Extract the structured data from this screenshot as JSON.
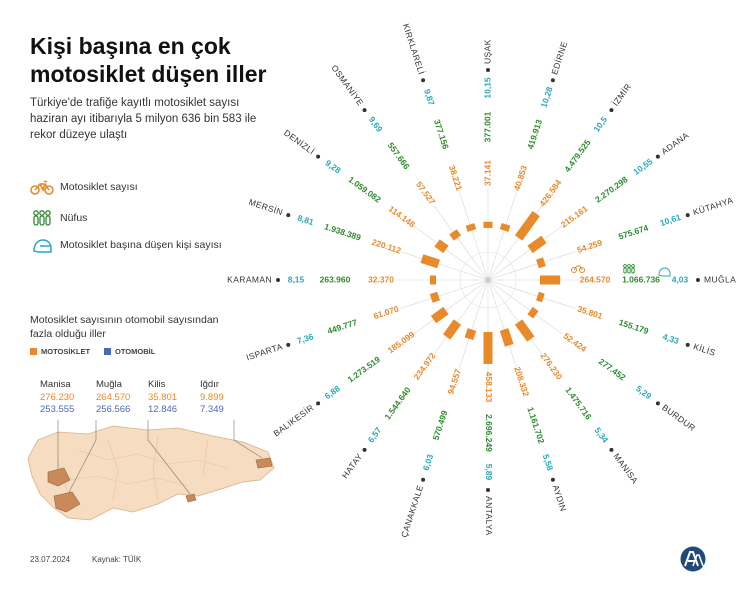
{
  "header": {
    "title": "Kişi başına en çok motosiklet düşen iller",
    "subtitle": "Türkiye'de trafiğe kayıtlı motosiklet sayısı haziran ayı itibarıyla 5 milyon 636 bin 583 ile rekor düzeye ulaştı"
  },
  "legend": {
    "motorcycles": "Motosiklet sayısı",
    "population": "Nüfus",
    "per_capita": "Motosiklet başına düşen kişi sayısı"
  },
  "note": {
    "text": "Motosiklet sayısının otomobil sayısından fazla olduğu iller",
    "moto_label": "MOTOSİKLET",
    "auto_label": "OTOMOBİL",
    "cities": [
      {
        "name": "Manisa",
        "moto": "276.230",
        "auto": "253.555"
      },
      {
        "name": "Muğla",
        "moto": "264.570",
        "auto": "256.566"
      },
      {
        "name": "Kilis",
        "moto": "35.801",
        "auto": "12.846"
      },
      {
        "name": "Iğdır",
        "moto": "9.899",
        "auto": "7.349"
      }
    ]
  },
  "colors": {
    "moto": "#e8892a",
    "population": "#2e8b2e",
    "per_capita": "#2aa8b8",
    "auto": "#4a6ab8",
    "map": "#f6dcc0",
    "map_highlight": "#c98a5a"
  },
  "icons": {
    "motorcycles": "motorcycle-icon",
    "population": "people-icon",
    "per_capita": "helmet-icon",
    "logo": "aa-logo-icon"
  },
  "footer": {
    "date": "23.07.2024",
    "source": "Kaynak: TÜİK"
  },
  "chart_data": {
    "type": "bar",
    "layout": "radial",
    "series_names": [
      "Motosiklet sayısı",
      "Nüfus",
      "Motosiklet başına düşen kişi sayısı"
    ],
    "cities": [
      {
        "name": "MUĞLA",
        "motorcycles": 264570,
        "motorcycles_label": "264.570",
        "population_label": "1.066.736",
        "per_capita": "4,03"
      },
      {
        "name": "KİLİS",
        "motorcycles": 35801,
        "motorcycles_label": "35.801",
        "population_label": "155.179",
        "per_capita": "4,33"
      },
      {
        "name": "BURDUR",
        "motorcycles": 52424,
        "motorcycles_label": "52.424",
        "population_label": "277.452",
        "per_capita": "5,29"
      },
      {
        "name": "MANİSA",
        "motorcycles": 276230,
        "motorcycles_label": "276.230",
        "population_label": "1.475.716",
        "per_capita": "5,34"
      },
      {
        "name": "AYDIN",
        "motorcycles": 208332,
        "motorcycles_label": "208.332",
        "population_label": "1.161.702",
        "per_capita": "5,58"
      },
      {
        "name": "ANTALYA",
        "motorcycles": 458133,
        "motorcycles_label": "458.133",
        "population_label": "2.696.249",
        "per_capita": "5,89"
      },
      {
        "name": "ÇANAKKALE",
        "motorcycles": 94557,
        "motorcycles_label": "94.557",
        "population_label": "570.499",
        "per_capita": "6,03"
      },
      {
        "name": "HATAY",
        "motorcycles": 234972,
        "motorcycles_label": "234.972",
        "population_label": "1.544.640",
        "per_capita": "6,57"
      },
      {
        "name": "BALIKESİR",
        "motorcycles": 185099,
        "motorcycles_label": "185.099",
        "population_label": "1.273.519",
        "per_capita": "6,88"
      },
      {
        "name": "ISPARTA",
        "motorcycles": 61070,
        "motorcycles_label": "61.070",
        "population_label": "449.777",
        "per_capita": "7,36"
      },
      {
        "name": "KARAMAN",
        "motorcycles": 32370,
        "motorcycles_label": "32.370",
        "population_label": "263.960",
        "per_capita": "8,15"
      },
      {
        "name": "MERSİN",
        "motorcycles": 220112,
        "motorcycles_label": "220.112",
        "population_label": "1.938.389",
        "per_capita": "8,81"
      },
      {
        "name": "DENİZLİ",
        "motorcycles": 114148,
        "motorcycles_label": "114.148",
        "population_label": "1.059.082",
        "per_capita": "9,28"
      },
      {
        "name": "OSMANİYE",
        "motorcycles": 57527,
        "motorcycles_label": "57.527",
        "population_label": "557.666",
        "per_capita": "9,69"
      },
      {
        "name": "KIRKLARELİ",
        "motorcycles": 38221,
        "motorcycles_label": "38.221",
        "population_label": "377.156",
        "per_capita": "9,87"
      },
      {
        "name": "UŞAK",
        "motorcycles": 37141,
        "motorcycles_label": "37.141",
        "population_label": "377.001",
        "per_capita": "10,15"
      },
      {
        "name": "EDİRNE",
        "motorcycles": 40853,
        "motorcycles_label": "40.853",
        "population_label": "419.913",
        "per_capita": "10,28"
      },
      {
        "name": "İZMİR",
        "motorcycles": 426584,
        "motorcycles_label": "426.584",
        "population_label": "4.479.525",
        "per_capita": "10,5"
      },
      {
        "name": "ADANA",
        "motorcycles": 215161,
        "motorcycles_label": "215.161",
        "population_label": "2.270.298",
        "per_capita": "10,55"
      },
      {
        "name": "KÜTAHYA",
        "motorcycles": 54259,
        "motorcycles_label": "54.259",
        "population_label": "575.674",
        "per_capita": "10,61"
      }
    ]
  }
}
